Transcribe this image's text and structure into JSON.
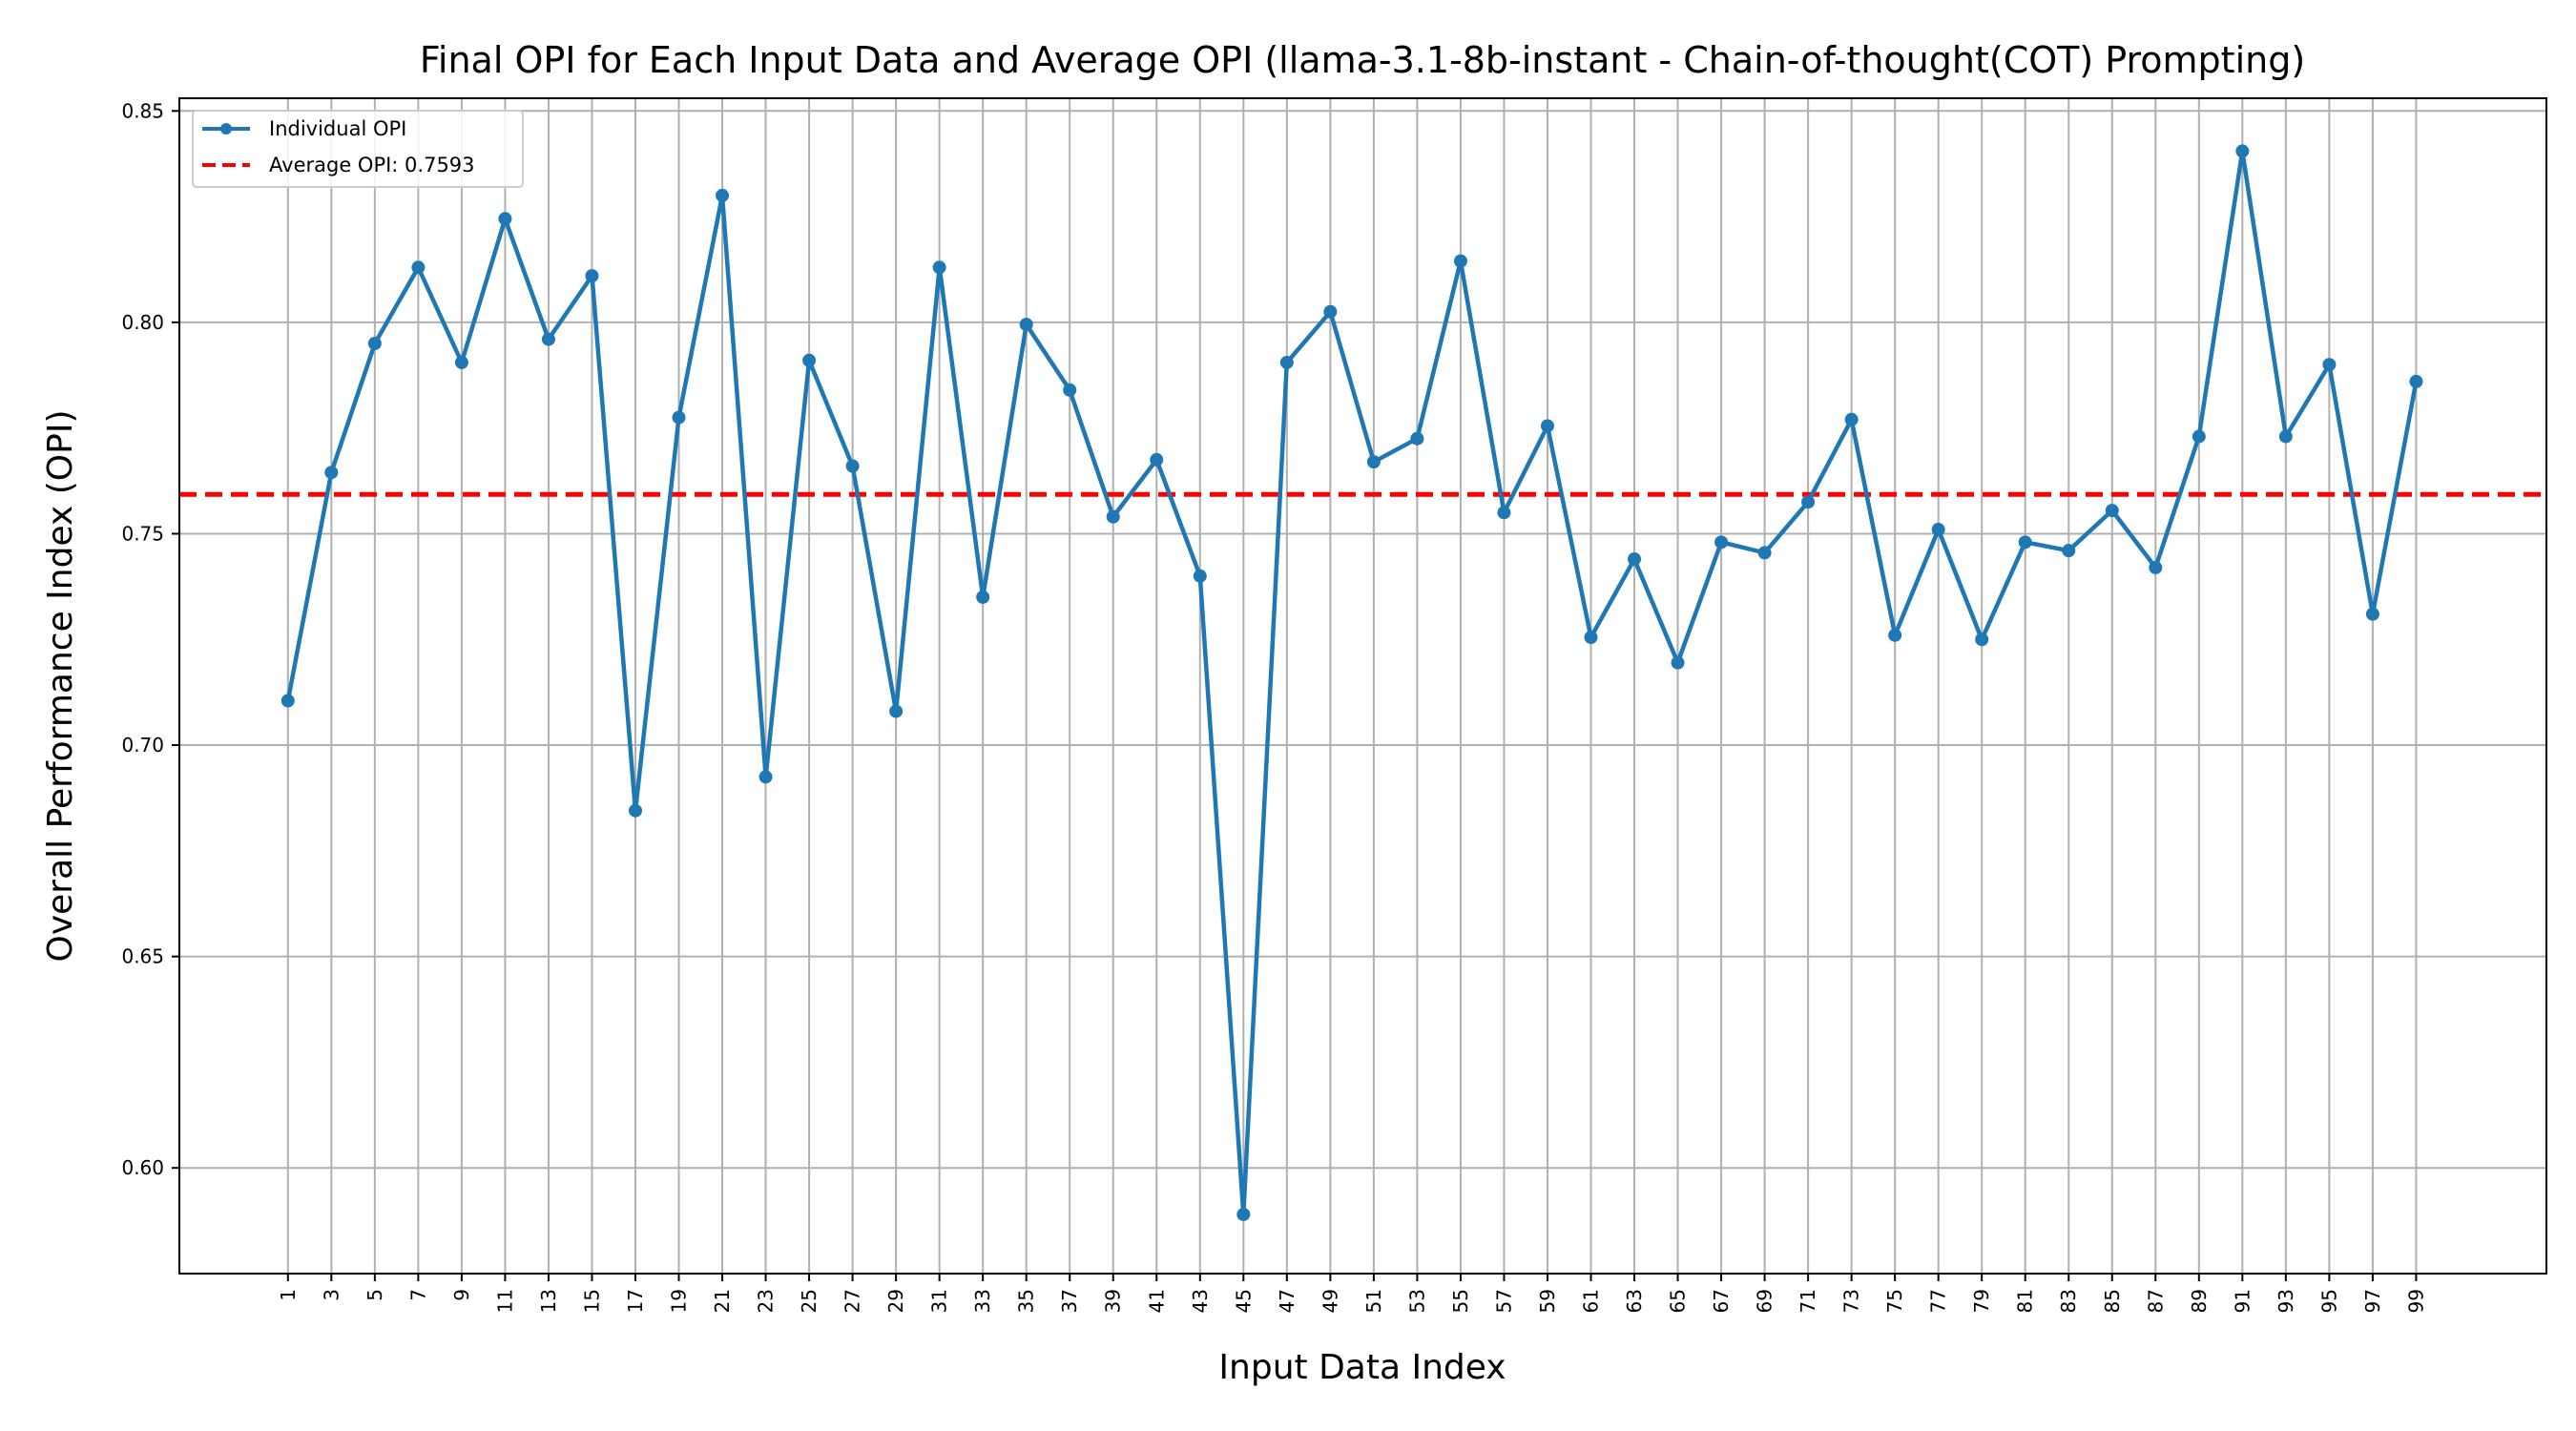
{
  "chart_data": {
    "type": "line",
    "title": "Final OPI for Each Input Data and Average OPI (llama-3.1-8b-instant - Chain-of-thought(COT) Prompting)",
    "xlabel": "Input Data Index",
    "ylabel": "Overall Performance Index (OPI)",
    "x": [
      1,
      3,
      5,
      7,
      9,
      11,
      13,
      15,
      17,
      19,
      21,
      23,
      25,
      27,
      29,
      31,
      33,
      35,
      37,
      39,
      41,
      43,
      45,
      47,
      49,
      51,
      53,
      55,
      57,
      59,
      61,
      63,
      65,
      67,
      69,
      71,
      73,
      75,
      77,
      79,
      81,
      83,
      85,
      87,
      89,
      91,
      93,
      95,
      97,
      99
    ],
    "x_ticks": [
      "1",
      "3",
      "5",
      "7",
      "9",
      "11",
      "13",
      "15",
      "17",
      "19",
      "21",
      "23",
      "25",
      "27",
      "29",
      "31",
      "33",
      "35",
      "37",
      "39",
      "41",
      "43",
      "45",
      "47",
      "49",
      "51",
      "53",
      "55",
      "57",
      "59",
      "61",
      "63",
      "65",
      "67",
      "69",
      "71",
      "73",
      "75",
      "77",
      "79",
      "81",
      "83",
      "85",
      "87",
      "89",
      "91",
      "93",
      "95",
      "97",
      "99"
    ],
    "y_ticks": [
      "0.60",
      "0.65",
      "0.70",
      "0.75",
      "0.80",
      "0.85"
    ],
    "ylim": [
      0.575,
      0.853
    ],
    "xlim": [
      -4,
      105
    ],
    "grid": true,
    "legend_position": "top-left",
    "series": [
      {
        "name": "Individual OPI",
        "color": "#1f77b4",
        "style": "solid-with-markers",
        "values": [
          0.7105,
          0.7645,
          0.795,
          0.813,
          0.7905,
          0.8245,
          0.796,
          0.811,
          0.6845,
          0.7775,
          0.83,
          0.6925,
          0.791,
          0.766,
          0.708,
          0.813,
          0.735,
          0.7995,
          0.784,
          0.754,
          0.7675,
          0.74,
          0.589,
          0.7905,
          0.8025,
          0.767,
          0.7725,
          0.8145,
          0.755,
          0.7755,
          0.7255,
          0.744,
          0.7195,
          0.748,
          0.7455,
          0.7575,
          0.777,
          0.726,
          0.751,
          0.725,
          0.748,
          0.746,
          0.7555,
          0.742,
          0.773,
          0.8405,
          0.773,
          0.79,
          0.731,
          0.786
        ]
      },
      {
        "name": "Average OPI: 0.7593",
        "color": "#ff0000",
        "style": "dashed",
        "value": 0.7593
      }
    ]
  }
}
